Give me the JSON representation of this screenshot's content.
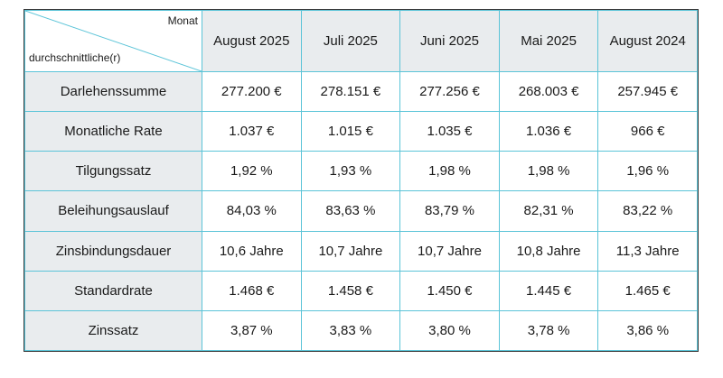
{
  "table": {
    "corner": {
      "top": "Monat",
      "bottom": "durchschnittliche(r)"
    },
    "columns": [
      "August 2025",
      "Juli 2025",
      "Juni 2025",
      "Mai 2025",
      "August 2024"
    ],
    "rows": [
      {
        "label": "Darlehenssumme",
        "values": [
          "277.200 €",
          "278.151 €",
          "277.256 €",
          "268.003 €",
          "257.945 €"
        ]
      },
      {
        "label": "Monatliche Rate",
        "values": [
          "1.037 €",
          "1.015 €",
          "1.035 €",
          "1.036 €",
          "966 €"
        ]
      },
      {
        "label": "Tilgungssatz",
        "values": [
          "1,92 %",
          "1,93 %",
          "1,98 %",
          "1,98 %",
          "1,96 %"
        ]
      },
      {
        "label": "Beleihungsauslauf",
        "values": [
          "84,03 %",
          "83,63 %",
          "83,79 %",
          "82,31 %",
          "83,22 %"
        ]
      },
      {
        "label": "Zinsbindungsdauer",
        "values": [
          "10,6 Jahre",
          "10,7 Jahre",
          "10,7 Jahre",
          "10,8 Jahre",
          "11,3 Jahre"
        ]
      },
      {
        "label": "Standardrate",
        "values": [
          "1.468 €",
          "1.458 €",
          "1.450 €",
          "1.445 €",
          "1.465 €"
        ]
      },
      {
        "label": "Zinssatz",
        "values": [
          "3,87 %",
          "3,83 %",
          "3,80 %",
          "3,78 %",
          "3,86 %"
        ]
      }
    ]
  },
  "colors": {
    "grid_line": "#5bc4d8",
    "header_fill": "#e9ecee",
    "outer_border": "#3a3a3a"
  }
}
